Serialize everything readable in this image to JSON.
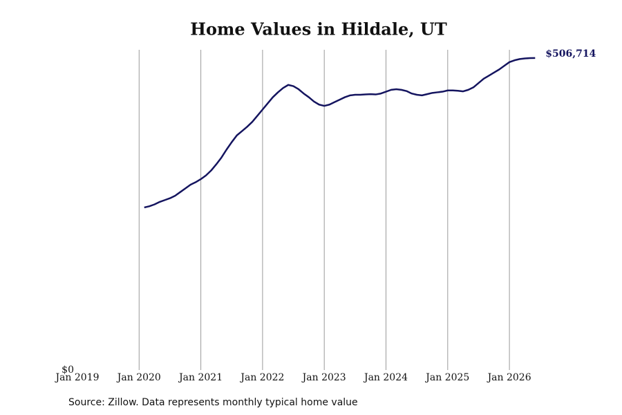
{
  "chart_data": {
    "type": "line",
    "title": "Home Values in Hildale, UT",
    "source": "Source: Zillow. Data represents monthly typical home value",
    "x": [
      "2020-02",
      "2020-03",
      "2020-04",
      "2020-05",
      "2020-06",
      "2020-07",
      "2020-08",
      "2020-09",
      "2020-10",
      "2020-11",
      "2020-12",
      "2021-01",
      "2021-02",
      "2021-03",
      "2021-04",
      "2021-05",
      "2021-06",
      "2021-07",
      "2021-08",
      "2021-09",
      "2021-10",
      "2021-11",
      "2021-12",
      "2022-01",
      "2022-02",
      "2022-03",
      "2022-04",
      "2022-05",
      "2022-06",
      "2022-07",
      "2022-08",
      "2022-09",
      "2022-10",
      "2022-11",
      "2022-12",
      "2023-01",
      "2023-02",
      "2023-03",
      "2023-04",
      "2023-05",
      "2023-06",
      "2023-07",
      "2023-08",
      "2023-09",
      "2023-10",
      "2023-11",
      "2023-12",
      "2024-01",
      "2024-02",
      "2024-03",
      "2024-04",
      "2024-05",
      "2024-06",
      "2024-07",
      "2024-08",
      "2024-09",
      "2024-10",
      "2024-11",
      "2024-12",
      "2025-01",
      "2025-02",
      "2025-03",
      "2025-04",
      "2025-05",
      "2025-06",
      "2025-07",
      "2025-08",
      "2025-09",
      "2025-10",
      "2025-11",
      "2025-12",
      "2026-01",
      "2026-02",
      "2026-03",
      "2026-04",
      "2026-05",
      "2026-06"
    ],
    "values": [
      264000,
      266000,
      269000,
      273000,
      276000,
      279000,
      283000,
      289000,
      295000,
      301000,
      305000,
      310000,
      316000,
      324000,
      334000,
      345000,
      358000,
      370000,
      381000,
      388000,
      395000,
      403000,
      413000,
      423000,
      433000,
      443000,
      451000,
      458000,
      463000,
      461000,
      456000,
      449000,
      443000,
      436000,
      431000,
      429000,
      431000,
      435000,
      439000,
      443000,
      446000,
      447000,
      447000,
      447500,
      448000,
      447500,
      449000,
      452000,
      455000,
      456000,
      455000,
      453000,
      449000,
      447000,
      446000,
      448000,
      450000,
      451000,
      452000,
      454000,
      454000,
      453500,
      452500,
      455000,
      459000,
      466000,
      473000,
      478000,
      483000,
      488000,
      494000,
      500000,
      503000,
      505000,
      506000,
      506500,
      506714
    ],
    "value_labels": [
      null,
      null,
      null,
      null,
      null,
      null,
      null,
      null,
      null,
      null,
      null,
      null,
      null,
      null,
      null,
      null,
      null,
      null,
      null,
      null,
      null,
      null,
      null,
      null,
      null,
      null,
      null,
      null,
      null,
      null,
      null,
      null,
      null,
      null,
      null,
      null,
      null,
      null,
      null,
      null,
      null,
      null,
      null,
      null,
      null,
      null,
      null,
      null,
      null,
      null,
      null,
      null,
      null,
      null,
      null,
      null,
      null,
      null,
      null,
      null,
      null,
      null,
      null,
      null,
      null,
      null,
      null,
      null,
      null,
      null,
      null,
      null,
      null,
      null,
      null,
      null,
      "$506,714"
    ],
    "color": "#14145f",
    "xlim": [
      "2019-01",
      "2026-09"
    ],
    "xticks": [
      {
        "value": "2019-01",
        "label": "Jan 2019"
      },
      {
        "value": "2020-01",
        "label": "Jan 2020"
      },
      {
        "value": "2021-01",
        "label": "Jan 2021"
      },
      {
        "value": "2022-01",
        "label": "Jan 2022"
      },
      {
        "value": "2023-01",
        "label": "Jan 2023"
      },
      {
        "value": "2024-01",
        "label": "Jan 2024"
      },
      {
        "value": "2025-01",
        "label": "Jan 2025"
      },
      {
        "value": "2026-01",
        "label": "Jan 2026"
      }
    ],
    "ylim": [
      0,
      520000
    ],
    "yticks": [
      {
        "value": 0,
        "label": "$0"
      }
    ],
    "grid": true
  }
}
